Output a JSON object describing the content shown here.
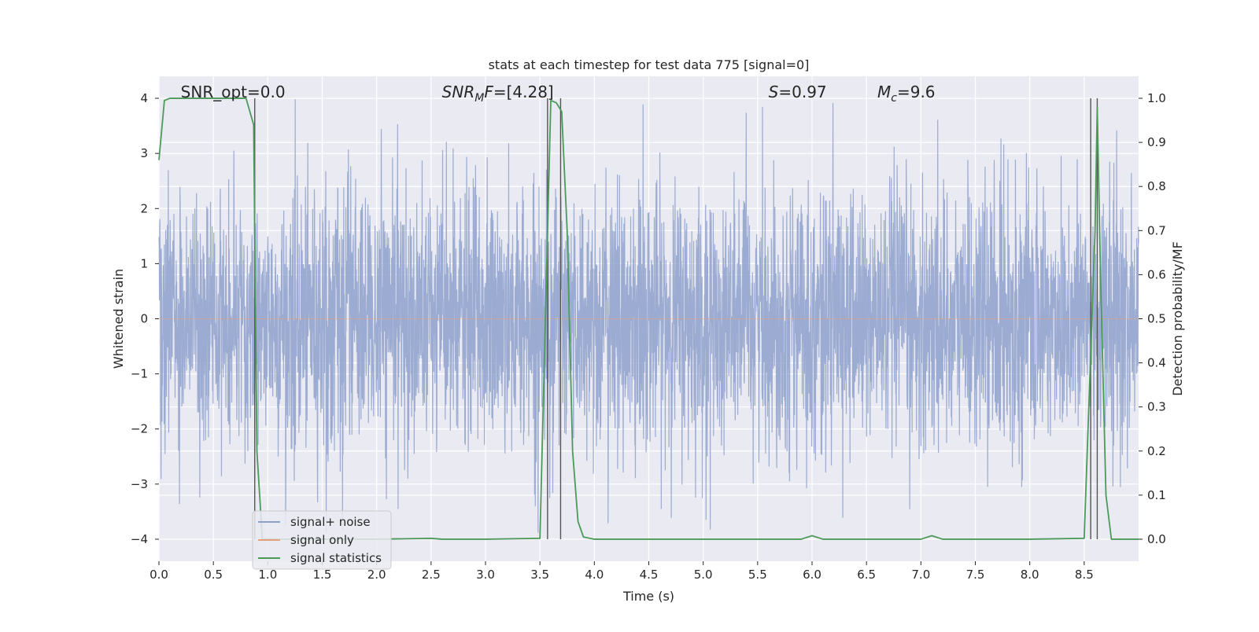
{
  "chart_data": {
    "type": "line",
    "title": "stats at each timestep for test data 775 [signal=0]",
    "xlabel": "Time (s)",
    "ylabel": "Whitened strain",
    "y2label": "Detection probability/MF",
    "xlim": [
      0.0,
      9.0
    ],
    "ylim": [
      -4.4,
      4.4
    ],
    "y2lim": [
      -0.05,
      1.05
    ],
    "x_ticks": [
      "0.0",
      "0.5",
      "1.0",
      "1.5",
      "2.0",
      "2.5",
      "3.0",
      "3.5",
      "4.0",
      "4.5",
      "5.0",
      "5.5",
      "6.0",
      "6.5",
      "7.0",
      "7.5",
      "8.0",
      "8.5"
    ],
    "y_ticks": [
      "4",
      "3",
      "2",
      "1",
      "0",
      "−1",
      "−2",
      "−3",
      "−4"
    ],
    "y2_ticks": [
      "1.0",
      "0.9",
      "0.8",
      "0.7",
      "0.6",
      "0.5",
      "0.4",
      "0.3",
      "0.2",
      "0.1",
      "0.0"
    ],
    "grid": true,
    "annotations": [
      {
        "parts": [
          {
            "t": "SNR_opt=0.0",
            "it": false
          }
        ],
        "x": 0.2
      },
      {
        "parts": [
          {
            "t": "SNR",
            "it": true
          },
          {
            "t": "M",
            "it": true,
            "sub": true
          },
          {
            "t": "F",
            "it": true
          },
          {
            "t": "=[4.28]",
            "it": false
          }
        ],
        "x": 2.6
      },
      {
        "parts": [
          {
            "t": "S",
            "it": true
          },
          {
            "t": "=0.97",
            "it": false
          }
        ],
        "x": 5.6
      },
      {
        "parts": [
          {
            "t": "M",
            "it": true
          },
          {
            "t": "c",
            "it": true,
            "sub": true
          },
          {
            "t": "=9.6",
            "it": false
          }
        ],
        "x": 6.6
      }
    ],
    "legend": {
      "placement": "lower-left",
      "entries": [
        {
          "label": "signal+ noise",
          "color": "#8da0cb"
        },
        {
          "label": "signal only",
          "color": "#e5a07a"
        },
        {
          "label": "signal statistics",
          "color": "#4c9a5a"
        }
      ]
    },
    "series": [
      {
        "name": "signal+ noise",
        "axis": "left",
        "kind": "dense-noise",
        "color": "#8da0cb",
        "x_range": [
          0.0,
          9.0
        ],
        "envelope_min": -3.9,
        "envelope_max": 4.0
      },
      {
        "name": "signal only",
        "axis": "left",
        "color": "#e5a07a",
        "x": [
          0.0,
          9.0
        ],
        "y": [
          0.0,
          0.0
        ]
      },
      {
        "name": "signal statistics",
        "axis": "right",
        "color": "#4c9a5a",
        "x": [
          0.0,
          0.05,
          0.1,
          0.15,
          0.5,
          0.8,
          0.87,
          0.9,
          0.95,
          1.0,
          2.0,
          2.5,
          2.6,
          3.0,
          3.5,
          3.6,
          3.65,
          3.7,
          3.75,
          3.8,
          3.85,
          3.9,
          4.0,
          5.0,
          5.9,
          6.0,
          6.1,
          7.0,
          7.1,
          7.2,
          8.0,
          8.5,
          8.6,
          8.62,
          8.65,
          8.7,
          8.75,
          9.0
        ],
        "y": [
          0.86,
          0.995,
          1.0,
          1.0,
          1.0,
          1.0,
          0.94,
          0.2,
          0.0,
          0.0,
          0.0,
          0.002,
          0.0,
          0.0,
          0.002,
          0.995,
          0.99,
          0.97,
          0.7,
          0.2,
          0.04,
          0.005,
          0.0,
          0.0,
          0.0,
          0.008,
          0.0,
          0.0,
          0.008,
          0.0,
          0.0,
          0.002,
          0.7,
          0.98,
          0.6,
          0.1,
          0.0,
          0.0
        ]
      }
    ],
    "vertical_markers": [
      0.88,
      3.57,
      3.69,
      8.56,
      8.62
    ]
  },
  "colors": {
    "plot_background": "#eaeaf2",
    "grid": "#ffffff",
    "marker_lines": "#555555"
  }
}
